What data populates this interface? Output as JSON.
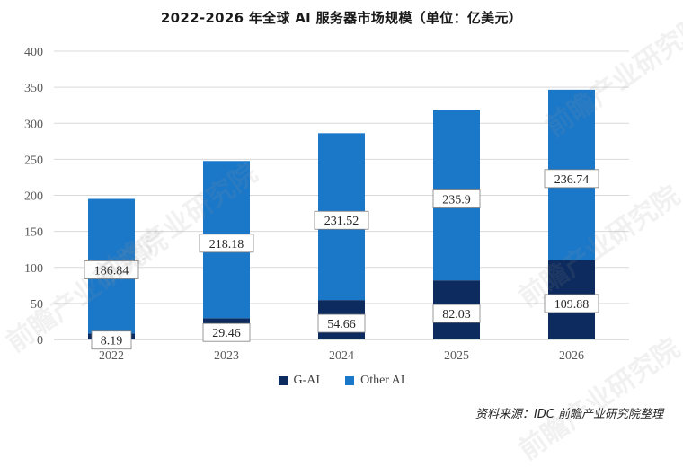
{
  "page": {
    "source_note": "资料来源：IDC 前瞻产业研究院整理",
    "watermark_text": "前瞻产业研究院"
  },
  "colors": {
    "g_ai": "#0d2b5e",
    "other_ai": "#1b78c8",
    "grid": "#d9d9d9",
    "axis": "#bfbfbf"
  },
  "chart_data": {
    "type": "bar",
    "stacked": true,
    "title": "2022-2026 年全球 AI 服务器市场规模（单位：亿美元）",
    "categories": [
      "2022",
      "2023",
      "2024",
      "2025",
      "2026"
    ],
    "series": [
      {
        "name": "G-AI",
        "values": [
          8.19,
          29.46,
          54.66,
          82.03,
          109.88
        ]
      },
      {
        "name": "Other AI",
        "values": [
          186.84,
          218.18,
          231.52,
          235.9,
          236.74
        ]
      }
    ],
    "data_labels": {
      "G-AI": [
        "8.19",
        "29.46",
        "54.66",
        "82.03",
        "109.88"
      ],
      "Other AI": [
        "186.84",
        "218.18",
        "231.52",
        "235.9",
        "236.74"
      ]
    },
    "y_ticks": [
      0,
      50,
      100,
      150,
      200,
      250,
      300,
      350,
      400
    ],
    "ylim": [
      0,
      400
    ],
    "grid": true,
    "legend_position": "bottom",
    "xlabel": "",
    "ylabel": ""
  }
}
